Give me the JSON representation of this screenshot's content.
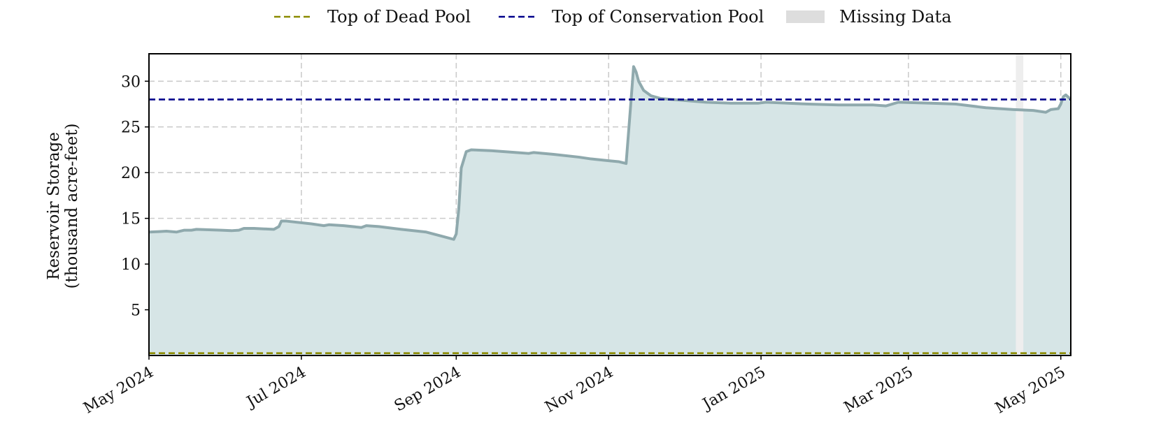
{
  "chart_data": {
    "type": "area",
    "title": "",
    "xlabel": "",
    "ylabel": [
      "Reservoir Storage",
      "(thousand acre-feet)"
    ],
    "xlim": [
      "2024-05-01",
      "2025-05-05"
    ],
    "ylim": [
      0,
      33
    ],
    "x_ticks": [
      "2024-05-01",
      "2024-07-01",
      "2024-09-01",
      "2024-11-01",
      "2025-01-01",
      "2025-03-01",
      "2025-05-01"
    ],
    "x_tick_labels": [
      "May 2024",
      "Jul 2024",
      "Sep 2024",
      "Nov 2024",
      "Jan 2025",
      "Mar 2025",
      "May 2025"
    ],
    "y_ticks": [
      5,
      10,
      15,
      20,
      25,
      30
    ],
    "grid": true,
    "legend_position": "top-center",
    "legend": [
      {
        "label": "Top of Dead Pool",
        "kind": "dashed-line",
        "color": "#8b8b00"
      },
      {
        "label": "Top of Conservation Pool",
        "kind": "dashed-line",
        "color": "#00008b"
      },
      {
        "label": "Missing Data",
        "kind": "patch",
        "color": "#dddddd"
      }
    ],
    "reference_lines": [
      {
        "name": "Top of Dead Pool",
        "y": 0.25,
        "color": "#8b8b00"
      },
      {
        "name": "Top of Conservation Pool",
        "y": 28.0,
        "color": "#00008b"
      }
    ],
    "missing_data": [
      {
        "start": "2025-04-13",
        "end": "2025-04-16"
      }
    ],
    "series": [
      {
        "color": "#8fa9ad",
        "fill": "#d6e5e6",
        "points": [
          [
            "2024-05-01",
            13.5
          ],
          [
            "2024-05-05",
            13.55
          ],
          [
            "2024-05-08",
            13.6
          ],
          [
            "2024-05-12",
            13.5
          ],
          [
            "2024-05-15",
            13.7
          ],
          [
            "2024-05-18",
            13.7
          ],
          [
            "2024-05-20",
            13.8
          ],
          [
            "2024-05-25",
            13.75
          ],
          [
            "2024-05-30",
            13.7
          ],
          [
            "2024-06-03",
            13.65
          ],
          [
            "2024-06-06",
            13.7
          ],
          [
            "2024-06-08",
            13.9
          ],
          [
            "2024-06-12",
            13.9
          ],
          [
            "2024-06-16",
            13.85
          ],
          [
            "2024-06-20",
            13.8
          ],
          [
            "2024-06-22",
            14.1
          ],
          [
            "2024-06-23",
            14.7
          ],
          [
            "2024-06-25",
            14.7
          ],
          [
            "2024-07-05",
            14.4
          ],
          [
            "2024-07-10",
            14.2
          ],
          [
            "2024-07-12",
            14.3
          ],
          [
            "2024-07-18",
            14.2
          ],
          [
            "2024-07-25",
            14.0
          ],
          [
            "2024-07-27",
            14.2
          ],
          [
            "2024-08-01",
            14.1
          ],
          [
            "2024-08-10",
            13.8
          ],
          [
            "2024-08-20",
            13.5
          ],
          [
            "2024-08-31",
            12.7
          ],
          [
            "2024-09-01",
            13.3
          ],
          [
            "2024-09-02",
            16.0
          ],
          [
            "2024-09-03",
            20.5
          ],
          [
            "2024-09-05",
            22.3
          ],
          [
            "2024-09-07",
            22.5
          ],
          [
            "2024-09-15",
            22.4
          ],
          [
            "2024-09-25",
            22.2
          ],
          [
            "2024-09-30",
            22.1
          ],
          [
            "2024-10-02",
            22.2
          ],
          [
            "2024-10-10",
            22.0
          ],
          [
            "2024-10-20",
            21.7
          ],
          [
            "2024-10-25",
            21.5
          ],
          [
            "2024-11-01",
            21.3
          ],
          [
            "2024-11-05",
            21.2
          ],
          [
            "2024-11-08",
            21.0
          ],
          [
            "2024-11-09",
            24.5
          ],
          [
            "2024-11-10",
            28.0
          ],
          [
            "2024-11-11",
            31.6
          ],
          [
            "2024-11-12",
            31.0
          ],
          [
            "2024-11-13",
            30.0
          ],
          [
            "2024-11-15",
            29.0
          ],
          [
            "2024-11-18",
            28.4
          ],
          [
            "2024-11-22",
            28.1
          ],
          [
            "2024-12-01",
            27.9
          ],
          [
            "2024-12-10",
            27.7
          ],
          [
            "2024-12-20",
            27.6
          ],
          [
            "2024-12-31",
            27.6
          ],
          [
            "2025-01-03",
            27.7
          ],
          [
            "2025-01-20",
            27.5
          ],
          [
            "2025-02-01",
            27.4
          ],
          [
            "2025-02-15",
            27.4
          ],
          [
            "2025-02-20",
            27.3
          ],
          [
            "2025-02-25",
            27.7
          ],
          [
            "2025-03-10",
            27.6
          ],
          [
            "2025-03-20",
            27.5
          ],
          [
            "2025-04-01",
            27.1
          ],
          [
            "2025-04-12",
            26.9
          ],
          [
            "2025-04-20",
            26.8
          ],
          [
            "2025-04-25",
            26.6
          ],
          [
            "2025-04-27",
            26.9
          ],
          [
            "2025-04-30",
            27.0
          ],
          [
            "2025-05-01",
            27.5
          ],
          [
            "2025-05-02",
            28.3
          ],
          [
            "2025-05-03",
            28.5
          ],
          [
            "2025-05-05",
            28.0
          ]
        ]
      }
    ]
  }
}
